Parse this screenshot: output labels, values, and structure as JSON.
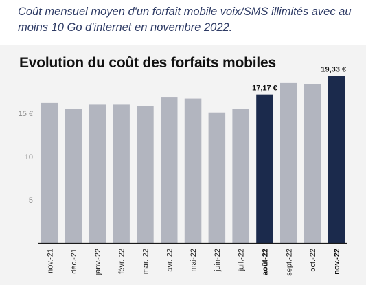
{
  "caption": "Coût mensuel moyen d'un forfait mobile voix/SMS illimités avec au moins 10 Go d'internet en novembre 2022.",
  "chart_data": {
    "type": "bar",
    "title": "Evolution du coût des forfaits mobiles",
    "xlabel": "",
    "ylabel": "",
    "categories": [
      "nov.-21",
      "déc.-21",
      "janv.-22",
      "févr.-22",
      "mar.-22",
      "avr.-22",
      "mai-22",
      "juin-22",
      "juil.-22",
      "août-22",
      "sept.-22",
      "oct.-22",
      "nov.-22"
    ],
    "values": [
      16.2,
      15.5,
      16.0,
      16.0,
      15.8,
      16.9,
      16.7,
      15.1,
      15.5,
      17.17,
      18.5,
      18.4,
      19.33
    ],
    "highlighted": [
      "août-22",
      "nov.-22"
    ],
    "data_labels": [
      {
        "category": "août-22",
        "text": "17,17 €"
      },
      {
        "category": "nov.-22",
        "text": "19,33 €"
      }
    ],
    "y_ticks": [
      {
        "value": 5,
        "label": "5"
      },
      {
        "value": 10,
        "label": "10"
      },
      {
        "value": 15,
        "label": "15 €"
      }
    ],
    "ylim": [
      0,
      20
    ],
    "grid": false,
    "colors": {
      "bar": "#b2b5bf",
      "highlight": "#1b2a4c",
      "axis": "#1a1a1a"
    }
  }
}
